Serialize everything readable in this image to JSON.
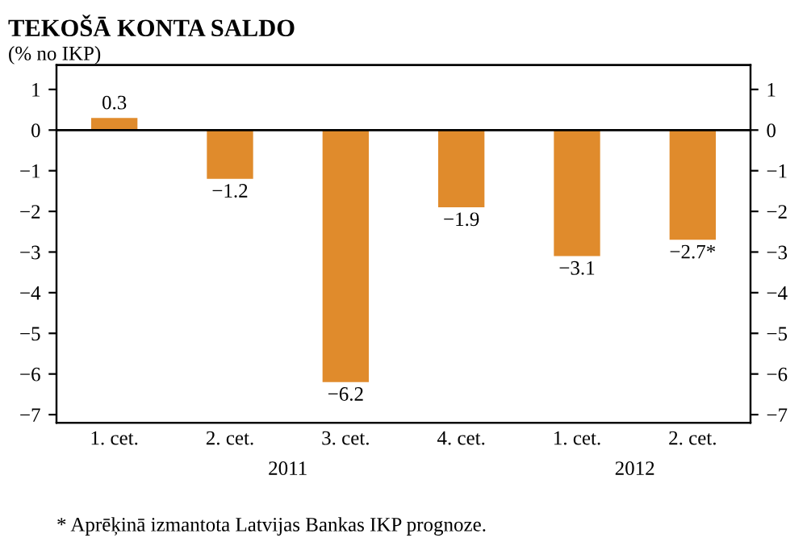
{
  "chart_data": {
    "type": "bar",
    "title": "TEKOŠĀ KONTA SALDO",
    "subtitle": "(% no IKP)",
    "categories": [
      "1. cet.",
      "2. cet.",
      "3. cet.",
      "4. cet.",
      "1. cet.",
      "2. cet."
    ],
    "values": [
      0.3,
      -1.2,
      -6.2,
      -1.9,
      -3.1,
      -2.7
    ],
    "value_labels": [
      "0.3",
      "−1.2",
      "−6.2",
      "−1.9",
      "−3.1",
      "−2.7*"
    ],
    "color": "#e08b2c",
    "ylim": [
      -7.2,
      1.6
    ],
    "yticks": [
      {
        "value": -7,
        "label": "−7"
      },
      {
        "value": -6,
        "label": "−6"
      },
      {
        "value": -5,
        "label": "−5"
      },
      {
        "value": -4,
        "label": "−4"
      },
      {
        "value": -3,
        "label": "−3"
      },
      {
        "value": -2,
        "label": "−2"
      },
      {
        "value": -1,
        "label": "−1"
      },
      0,
      1
    ],
    "y2lim": [
      -7.2,
      1.6
    ],
    "y2ticks": [
      {
        "value": -7,
        "label": "−7"
      },
      {
        "value": -6,
        "label": "−6"
      },
      {
        "value": -5,
        "label": "−5"
      },
      {
        "value": -4,
        "label": "−4"
      },
      {
        "value": -3,
        "label": "−3"
      },
      {
        "value": -2,
        "label": "−2"
      },
      {
        "value": -1,
        "label": "−1"
      },
      0,
      1
    ],
    "ref_lines": [
      {
        "axis": "y",
        "value": 0,
        "color": "#000000"
      }
    ],
    "annotations": [
      "2011",
      "2012",
      "* Aprēķinā izmantota Latvijas Bankas IKP prognoze."
    ],
    "grid": false,
    "legend": false
  }
}
